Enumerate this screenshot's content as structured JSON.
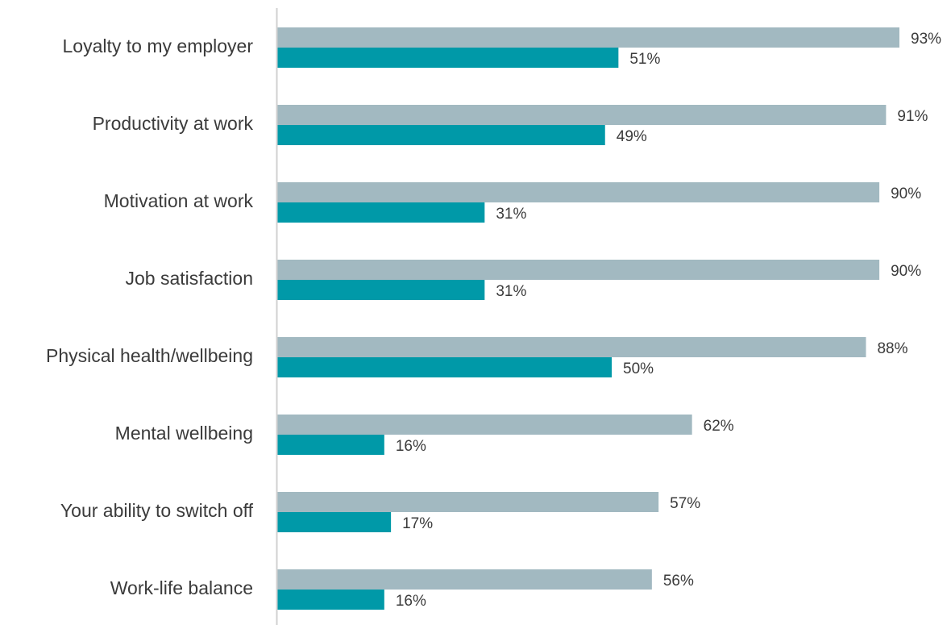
{
  "chart_data": {
    "type": "bar",
    "orientation": "horizontal",
    "categories": [
      "Loyalty to my employer",
      "Productivity at work",
      "Motivation at work",
      "Job satisfaction",
      "Physical health/wellbeing",
      "Mental wellbeing",
      "Your ability to switch off",
      "Work-life balance"
    ],
    "series": [
      {
        "values": [
          93,
          91,
          90,
          90,
          88,
          62,
          57,
          56
        ],
        "color": "#a2b9c1"
      },
      {
        "values": [
          51,
          49,
          31,
          31,
          50,
          16,
          17,
          16
        ],
        "color": "#0099a8"
      }
    ],
    "value_format": "percent",
    "xlim": [
      0,
      100
    ],
    "title": "",
    "xlabel": "",
    "ylabel": "",
    "legend": "none",
    "grid": false,
    "axis_color": "#d0d0d0"
  }
}
